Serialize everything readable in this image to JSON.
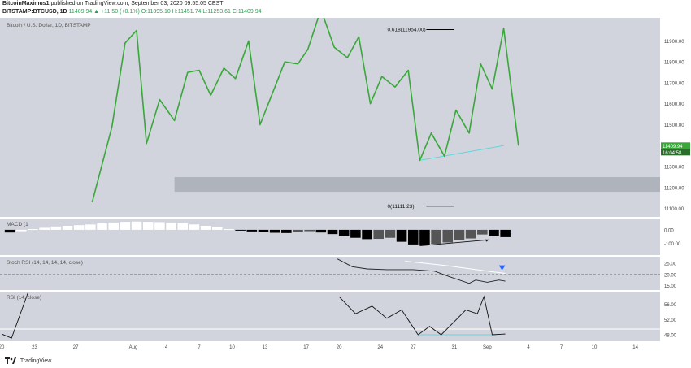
{
  "header": {
    "publisher": "BitcoinMaximus1",
    "published_text": "published on TradingView.com, September 03, 2020 09:55:05 CEST",
    "symbol": "BITSTAMP:BTCUSD, 1D",
    "ohlc": "11409.94 ▲ +11.50 (+0.1%) O:11395.10 H:11451.74 L:11253.61 C:11409.94"
  },
  "footer": {
    "brand": "TradingView"
  },
  "colors": {
    "pane_bg": "#d1d4dc",
    "price_line": "#3aa73a",
    "support_line": "#5fd6e0",
    "bar_black": "#000000",
    "bar_grey": "#555555",
    "bar_white": "#ffffff",
    "box": "#a9adb6",
    "rsi_line": "#111111"
  },
  "chart_data": {
    "type": "line",
    "main": {
      "title": "Bitcoin / U.S. Dollar, 1D, BITSTAMP",
      "last_price_label": "11409.94",
      "countdown_label": "16:04:58",
      "y_ticks": [
        "11900.00",
        "11800.00",
        "11700.00",
        "11600.00",
        "11500.00",
        "11400.00",
        "11300.00",
        "11200.00",
        "11100.00"
      ],
      "y_tick_values": [
        11900,
        11800,
        11700,
        11600,
        11500,
        11400,
        11300,
        11200,
        11100
      ],
      "ylim": [
        11060,
        12010
      ],
      "xlim": [
        0,
        40
      ],
      "x_ticks": [
        "20",
        "23",
        "27",
        "Aug",
        "4",
        "7",
        "10",
        "13",
        "17",
        "20",
        "24",
        "27",
        "31",
        "Sep",
        "4",
        "7",
        "10",
        "14"
      ],
      "x_tick_positions": [
        0,
        2,
        4.5,
        8,
        10,
        12,
        14,
        16,
        18.5,
        20.5,
        23,
        25,
        27.5,
        29.5,
        32,
        34,
        36,
        38.5
      ],
      "series": [
        {
          "x": [
            5.5,
            6.7,
            7.5,
            8.2,
            8.8,
            9.6,
            10.5,
            11.3,
            12.0,
            12.7,
            13.5,
            14.2,
            15.0,
            15.7,
            16.4,
            17.2,
            18.0,
            18.6,
            19.4,
            20.2,
            21.0,
            21.7,
            22.4,
            23.1,
            23.9,
            24.7,
            25.4,
            26.1,
            26.9,
            27.6,
            28.4,
            29.1,
            29.8,
            30.5,
            31.4
          ],
          "y": [
            11130,
            11490,
            11890,
            11950,
            11410,
            11620,
            11520,
            11750,
            11760,
            11640,
            11770,
            11720,
            11900,
            11500,
            11640,
            11800,
            11790,
            11860,
            12050,
            11870,
            11820,
            11920,
            11600,
            11730,
            11680,
            11760,
            11330,
            11460,
            11350,
            11570,
            11460,
            11790,
            11670,
            11960,
            11400
          ]
        }
      ],
      "fib_levels": [
        {
          "label": "0.618(11954.00)",
          "value": 11954
        },
        {
          "label": "0(11111.23)",
          "value": 11111.23
        }
      ],
      "support_trendline": {
        "x": [
          25.4,
          30.5
        ],
        "y": [
          11330,
          11400
        ]
      },
      "support_zone": {
        "x_from": 10.5,
        "x_to": 40,
        "y_from": 11180,
        "y_to": 11250
      }
    },
    "macd": {
      "label": "MACD (1",
      "y_ticks": [
        "0.00",
        "-100.00"
      ],
      "y_tick_values": [
        0,
        -100
      ],
      "ylim": [
        -190,
        85
      ],
      "bars": [
        {
          "x": 0.5,
          "v": -20,
          "c": "b"
        },
        {
          "x": 1.2,
          "v": -10,
          "c": "w"
        },
        {
          "x": 1.9,
          "v": 5,
          "c": "w"
        },
        {
          "x": 2.6,
          "v": 15,
          "c": "w"
        },
        {
          "x": 3.3,
          "v": 25,
          "c": "w"
        },
        {
          "x": 4.0,
          "v": 30,
          "c": "w"
        },
        {
          "x": 4.7,
          "v": 35,
          "c": "w"
        },
        {
          "x": 5.4,
          "v": 40,
          "c": "w"
        },
        {
          "x": 6.1,
          "v": 48,
          "c": "w"
        },
        {
          "x": 6.8,
          "v": 55,
          "c": "w"
        },
        {
          "x": 7.5,
          "v": 60,
          "c": "w"
        },
        {
          "x": 8.2,
          "v": 62,
          "c": "w"
        },
        {
          "x": 8.9,
          "v": 60,
          "c": "w"
        },
        {
          "x": 9.6,
          "v": 58,
          "c": "w"
        },
        {
          "x": 10.3,
          "v": 55,
          "c": "w"
        },
        {
          "x": 11.0,
          "v": 50,
          "c": "w"
        },
        {
          "x": 11.7,
          "v": 40,
          "c": "w"
        },
        {
          "x": 12.4,
          "v": 30,
          "c": "w"
        },
        {
          "x": 13.1,
          "v": 18,
          "c": "w"
        },
        {
          "x": 13.8,
          "v": 5,
          "c": "w"
        },
        {
          "x": 14.5,
          "v": -5,
          "c": "b"
        },
        {
          "x": 15.2,
          "v": -12,
          "c": "b"
        },
        {
          "x": 15.9,
          "v": -18,
          "c": "b"
        },
        {
          "x": 16.6,
          "v": -22,
          "c": "b"
        },
        {
          "x": 17.3,
          "v": -24,
          "c": "b"
        },
        {
          "x": 18.0,
          "v": -18,
          "c": "g"
        },
        {
          "x": 18.7,
          "v": -10,
          "c": "g"
        },
        {
          "x": 19.4,
          "v": -20,
          "c": "b"
        },
        {
          "x": 20.1,
          "v": -32,
          "c": "b"
        },
        {
          "x": 20.8,
          "v": -45,
          "c": "b"
        },
        {
          "x": 21.5,
          "v": -60,
          "c": "b"
        },
        {
          "x": 22.2,
          "v": -70,
          "c": "b"
        },
        {
          "x": 22.9,
          "v": -68,
          "c": "g"
        },
        {
          "x": 23.6,
          "v": -60,
          "c": "g"
        },
        {
          "x": 24.3,
          "v": -90,
          "c": "b"
        },
        {
          "x": 25.0,
          "v": -110,
          "c": "b"
        },
        {
          "x": 25.7,
          "v": -115,
          "c": "b"
        },
        {
          "x": 26.4,
          "v": -105,
          "c": "g"
        },
        {
          "x": 27.1,
          "v": -95,
          "c": "g"
        },
        {
          "x": 27.8,
          "v": -80,
          "c": "g"
        },
        {
          "x": 28.5,
          "v": -65,
          "c": "g"
        },
        {
          "x": 29.2,
          "v": -35,
          "c": "g"
        },
        {
          "x": 29.9,
          "v": -45,
          "c": "b"
        },
        {
          "x": 30.6,
          "v": -55,
          "c": "b"
        }
      ],
      "arrow": {
        "x": [
          25.4,
          29.6
        ],
        "y": [
          -120,
          -75
        ]
      }
    },
    "stoch_rsi": {
      "label": "Stoch RSI (14, 14, 14, 14, close)",
      "y_ticks": [
        "25.00",
        "20.00",
        "15.00"
      ],
      "y_tick_values": [
        25,
        20,
        15
      ],
      "ylim": [
        13,
        28
      ],
      "k_line": {
        "x": [
          20.4,
          21.3,
          22.2,
          23.4,
          25.0,
          26.3,
          27.2,
          28.4,
          28.8,
          29.5,
          30.2,
          30.6
        ],
        "y": [
          27,
          23.5,
          22.5,
          22.2,
          22.2,
          21.5,
          19,
          16,
          17.5,
          16.5,
          17.5,
          17
        ]
      },
      "d_line": {
        "x": [
          24.5,
          27.0,
          29.5,
          30.6
        ],
        "y": [
          26,
          24,
          21.5,
          20.5
        ]
      },
      "dashed_level": 20,
      "down_arrow": {
        "x": 30.4,
        "y": 23
      }
    },
    "rsi": {
      "label": "RSI (14, close)",
      "y_ticks": [
        "56.00",
        "52.00",
        "48.00"
      ],
      "y_tick_values": [
        56,
        52,
        48
      ],
      "ylim": [
        46.3,
        59.3
      ],
      "line": {
        "x": [
          0,
          0.6,
          1.6
        ],
        "y": [
          48.2,
          47.1,
          59
        ]
      },
      "line2": {
        "x": [
          20.5,
          21.5,
          22.5,
          23.4,
          24.3,
          25.3,
          26.0,
          26.7,
          27.4,
          28.2,
          28.9,
          29.3,
          29.8,
          30.6
        ],
        "y": [
          58,
          53.5,
          55.5,
          52.3,
          54.5,
          48,
          50.2,
          48,
          51,
          54.5,
          53.5,
          58,
          48,
          48.2
        ]
      },
      "hline_level": 49.5,
      "support_line": {
        "x": [
          25.3,
          30.0
        ],
        "y": [
          48,
          48
        ]
      }
    }
  }
}
